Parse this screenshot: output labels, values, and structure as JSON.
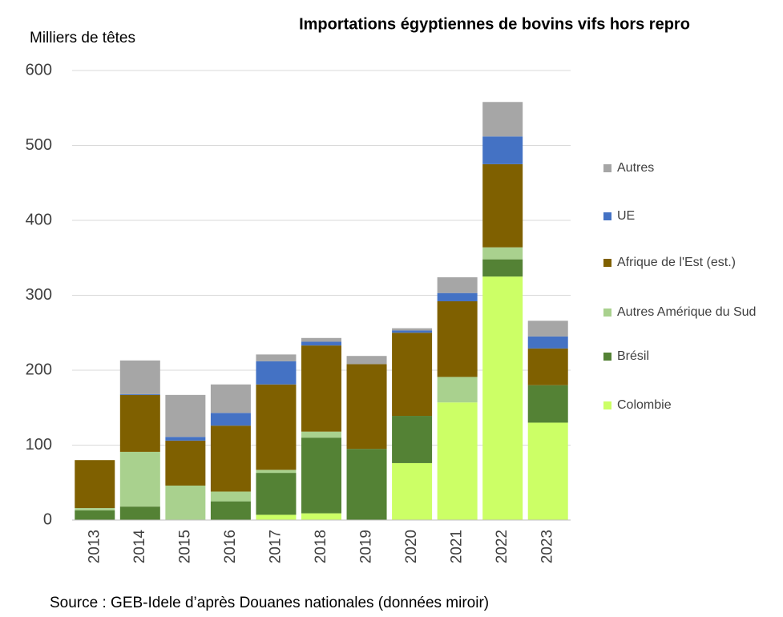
{
  "chart_data": {
    "type": "stacked_bar",
    "title": "Importations égyptiennes de bovins vifs hors repro",
    "y_label": "Milliers de têtes",
    "source": "Source : GEB-Idele d’après Douanes nationales (données miroir)",
    "categories": [
      "2013",
      "2014",
      "2015",
      "2016",
      "2017",
      "2018",
      "2019",
      "2020",
      "2021",
      "2022",
      "2023"
    ],
    "series": [
      {
        "name": "Colombie",
        "color": "#ccff66",
        "values": [
          0,
          0,
          0,
          0,
          7,
          9,
          0,
          76,
          157,
          325,
          130
        ]
      },
      {
        "name": "Brésil",
        "color": "#548235",
        "values": [
          13,
          18,
          0,
          25,
          56,
          101,
          95,
          63,
          0,
          23,
          50
        ]
      },
      {
        "name": "Autres Amérique du Sud",
        "color": "#a9d18e",
        "values": [
          3,
          73,
          46,
          13,
          4,
          8,
          0,
          0,
          34,
          16,
          0
        ]
      },
      {
        "name": "Afrique de l'Est (est.)",
        "color": "#7f6000",
        "values": [
          64,
          76,
          60,
          88,
          114,
          115,
          113,
          111,
          101,
          111,
          49
        ]
      },
      {
        "name": "UE",
        "color": "#4472c4",
        "values": [
          0,
          1,
          5,
          17,
          31,
          5,
          0,
          3,
          11,
          37,
          16
        ]
      },
      {
        "name": "Autres",
        "color": "#a6a6a6",
        "values": [
          0,
          45,
          56,
          38,
          9,
          5,
          11,
          3,
          21,
          46,
          21
        ]
      }
    ],
    "ylim": [
      0,
      600
    ],
    "yticks": [
      0,
      100,
      200,
      300,
      400,
      500,
      600
    ],
    "grid": true
  }
}
